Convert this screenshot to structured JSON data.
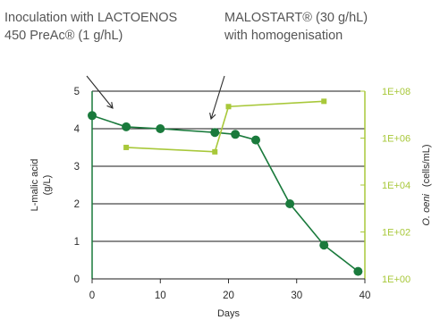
{
  "colors": {
    "malic": "#1a7a3c",
    "oeni": "#a8c83a",
    "text": "#2b2b2b",
    "annotation": "#555555",
    "grid": "#1a1a1a"
  },
  "chart_data": {
    "type": "line",
    "title": "",
    "annotations": [
      {
        "lines": [
          "Inoculation with LACTOENOS",
          "450 PreAc® (1 g/hL)"
        ]
      },
      {
        "lines": [
          "MALOSTART® (30 g/hL)",
          "with homogenisation"
        ]
      }
    ],
    "xlabel": "Days",
    "xlim": [
      0,
      40
    ],
    "x_ticks": [
      "0",
      "10",
      "20",
      "30",
      "40"
    ],
    "y_left": {
      "label_lines": [
        "L-malic acid",
        "(g/L)"
      ],
      "lim": [
        0,
        5
      ],
      "ticks": [
        "0",
        "1",
        "2",
        "3",
        "4",
        "5"
      ]
    },
    "y_right": {
      "label_italic": "O. oeni",
      "label_rest": "(cells/mL)",
      "scale": "log",
      "lim": [
        1,
        100000000
      ],
      "ticks": [
        "1E+00",
        "1E+02",
        "1E+04",
        "1E+06",
        "1E+08"
      ]
    },
    "grid": "horizontal",
    "series": [
      {
        "axis": "left",
        "marker": "circle",
        "x": [
          0,
          5,
          10,
          18,
          21,
          24,
          29,
          34,
          39
        ],
        "y": [
          4.35,
          4.05,
          4.0,
          3.9,
          3.85,
          3.7,
          2.0,
          0.9,
          0.2
        ]
      },
      {
        "axis": "right",
        "marker": "square",
        "x": [
          5,
          18,
          20,
          34
        ],
        "y": [
          400000,
          260000,
          22000000,
          37000000
        ]
      }
    ]
  }
}
